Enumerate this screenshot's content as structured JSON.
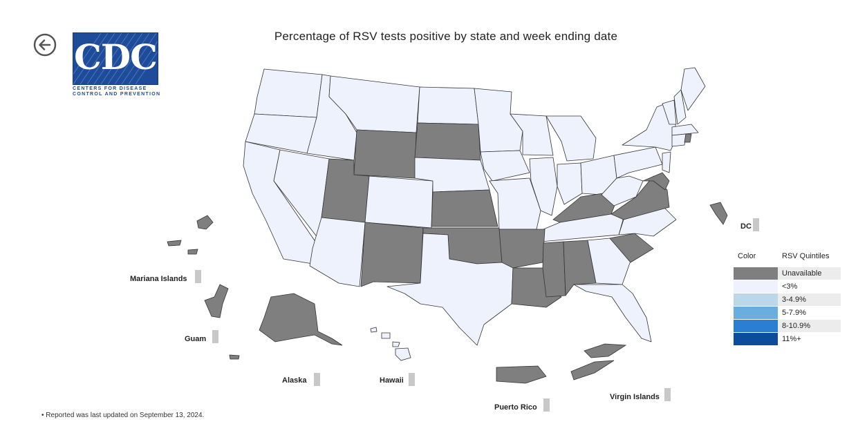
{
  "header": {
    "title": "Percentage of RSV tests positive by state and week ending date",
    "logo": {
      "text": "CDC",
      "line1": "CENTERS FOR DISEASE",
      "line2": "CONTROL AND PREVENTION",
      "color": "#1e4b9a"
    },
    "back_icon": "arrow-left-circle-icon"
  },
  "colors": {
    "unavailable": "#808080",
    "lt3": "#eef2fc",
    "border": "#333333",
    "chip": "#c8c8c8"
  },
  "territories": {
    "dc": "DC",
    "mariana": "Mariana Islands",
    "guam": "Guam",
    "alaska": "Alaska",
    "hawaii": "Hawaii",
    "puerto_rico": "Puerto Rico",
    "virgin_islands": "Virgin Islands"
  },
  "legend": {
    "color_header": "Color",
    "quintile_header": "RSV Quintiles",
    "items": [
      {
        "label": "Unavailable",
        "color": "#7f7f7f"
      },
      {
        "label": "<3%",
        "color": "#eef2fc"
      },
      {
        "label": "3-4.9%",
        "color": "#bcd7ea"
      },
      {
        "label": "5-7.9%",
        "color": "#6aaee0"
      },
      {
        "label": "8-10.9%",
        "color": "#2b7fd2"
      },
      {
        "label": "11%+",
        "color": "#0b4d9c"
      }
    ]
  },
  "footnote": "• Reported was last updated on September 13, 2024."
}
